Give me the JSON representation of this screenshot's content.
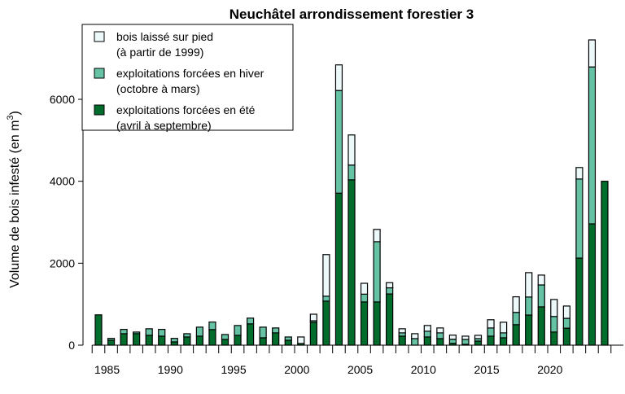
{
  "chart_data": {
    "type": "bar",
    "stacked": true,
    "title": "Neuchâtel arrondissement forestier 3",
    "xlabel": "",
    "ylabel": "Volume de bois infesté (en m",
    "ylabel_sup": "3",
    "ylabel_end": ")",
    "ylim": [
      0,
      7500
    ],
    "yticks": [
      0,
      2000,
      4000,
      6000
    ],
    "xtick_labels": [
      "1985",
      "1990",
      "1995",
      "2000",
      "2005",
      "2010",
      "2015",
      "2020"
    ],
    "legend_position": "top-left",
    "categories": [
      1984,
      1985,
      1986,
      1987,
      1988,
      1989,
      1990,
      1991,
      1992,
      1993,
      1994,
      1995,
      1996,
      1997,
      1998,
      1999,
      2000,
      2001,
      2002,
      2003,
      2004,
      2005,
      2006,
      2007,
      2008,
      2009,
      2010,
      2011,
      2012,
      2013,
      2014,
      2015,
      2016,
      2017,
      2018,
      2019,
      2020,
      2021,
      2022,
      2023,
      2024
    ],
    "series": [
      {
        "name": "exploitations forcées en été",
        "name_line2": "(avril à septembre)",
        "color": "#006d2c",
        "values": [
          740,
          120,
          280,
          280,
          240,
          220,
          80,
          200,
          220,
          380,
          140,
          240,
          520,
          180,
          300,
          120,
          40,
          555,
          1075,
          3710,
          4035,
          1055,
          1055,
          1250,
          220,
          0,
          200,
          160,
          45,
          20,
          100,
          220,
          180,
          500,
          735,
          935,
          320,
          415,
          2125,
          2960,
          4000
        ]
      },
      {
        "name": "exploitations forcées en hiver",
        "name_line2": "(octobre à mars)",
        "color": "#66c2a4",
        "values": [
          0,
          45,
          105,
          40,
          160,
          165,
          85,
          80,
          220,
          185,
          120,
          240,
          140,
          260,
          120,
          80,
          0,
          40,
          120,
          2505,
          360,
          190,
          1470,
          150,
          80,
          160,
          140,
          140,
          100,
          120,
          60,
          200,
          120,
          300,
          440,
          535,
          380,
          240,
          1930,
          3830,
          0
        ]
      },
      {
        "name": "bois laissé sur pied",
        "name_line2": "(à partir de 1999)",
        "color": "#edf8fb",
        "values": [
          0,
          0,
          0,
          0,
          0,
          0,
          0,
          0,
          0,
          0,
          0,
          0,
          0,
          0,
          0,
          0,
          160,
          160,
          1015,
          625,
          735,
          265,
          300,
          125,
          100,
          120,
          140,
          120,
          100,
          80,
          80,
          200,
          260,
          380,
          595,
          240,
          415,
          300,
          280,
          660,
          0
        ]
      }
    ]
  }
}
